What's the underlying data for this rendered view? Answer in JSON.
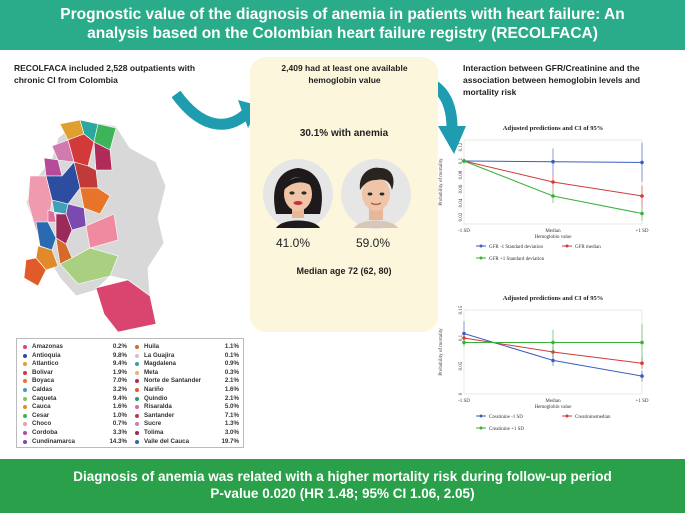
{
  "header": {
    "title_line1": "Prognostic value of the diagnosis of anemia in patients with heart failure: An",
    "title_line2": "analysis based on the Colombian heart failure registry (RECOLFACA)"
  },
  "left": {
    "intro": "RECOLFACA included 2,528 outpatients with chronic CI from Colombia"
  },
  "middle": {
    "hemoglobin_text": "2,409 had at least one available hemoglobin value",
    "anemia_text": "30.1% with anemia",
    "female_pct": "41.0%",
    "male_pct": "59.0%",
    "median_age": "Median age 72 (62, 80)"
  },
  "right": {
    "title": "Interaction between GFR/Creatinine and the association between hemoglobin levels and mortality risk"
  },
  "departments": [
    {
      "name": "Amazonas",
      "value": "0.2%",
      "color": "#d9456e"
    },
    {
      "name": "Antioquia",
      "value": "9.8%",
      "color": "#2d4ea0"
    },
    {
      "name": "Atlantico",
      "value": "9.4%",
      "color": "#e0a030"
    },
    {
      "name": "Bolivar",
      "value": "1.9%",
      "color": "#d23a3a"
    },
    {
      "name": "Boyaca",
      "value": "7.0%",
      "color": "#e8742a"
    },
    {
      "name": "Caldas",
      "value": "3.2%",
      "color": "#3fa0b8"
    },
    {
      "name": "Caqueta",
      "value": "9.4%",
      "color": "#8ac060"
    },
    {
      "name": "Cauca",
      "value": "1.6%",
      "color": "#e08a2a"
    },
    {
      "name": "Cesar",
      "value": "1.0%",
      "color": "#3db35a"
    },
    {
      "name": "Choco",
      "value": "0.7%",
      "color": "#f09ab0"
    },
    {
      "name": "Cordoba",
      "value": "3.3%",
      "color": "#b84a9a"
    },
    {
      "name": "Cundinamarca",
      "value": "14.3%",
      "color": "#7a4ab0"
    },
    {
      "name": "Huila",
      "value": "1.1%",
      "color": "#d66a2a"
    },
    {
      "name": "La Guajira",
      "value": "0.1%",
      "color": "#e0b8c8"
    },
    {
      "name": "Magdalena",
      "value": "0.9%",
      "color": "#2aa8a0"
    },
    {
      "name": "Meta",
      "value": "0.3%",
      "color": "#f0b070"
    },
    {
      "name": "Norte de Santander",
      "value": "2.1%",
      "color": "#b02a5a"
    },
    {
      "name": "Nariño",
      "value": "1.6%",
      "color": "#e05a2a"
    },
    {
      "name": "Quindio",
      "value": "2.1%",
      "color": "#2a9a6a"
    },
    {
      "name": "Risaralda",
      "value": "5.0%",
      "color": "#e06a9a"
    },
    {
      "name": "Santander",
      "value": "7.1%",
      "color": "#c03a3a"
    },
    {
      "name": "Sucre",
      "value": "1.3%",
      "color": "#d07ab0"
    },
    {
      "name": "Tolima",
      "value": "3.0%",
      "color": "#9a2a5a"
    },
    {
      "name": "Valle del Cauca",
      "value": "19.7%",
      "color": "#2a6ab0"
    }
  ],
  "footer": {
    "line1": "Diagnosis of anemia was related with a higher mortality risk during follow-up period",
    "line2": "P-value 0.020 (HR 1.48; 95% CI 1.06, 2.05)"
  },
  "chart_data": [
    {
      "type": "line",
      "title": "Adjusted predictions and CI of 95%",
      "xlabel": "Hemoglobin value",
      "ylabel": "Probability of mortality",
      "categories": [
        "-1 SD",
        "Median",
        "+1 SD"
      ],
      "category_labels": [
        "-1 SD",
        "Median",
        "+1 SD"
      ],
      "ylim": [
        0.01,
        0.13
      ],
      "yticks": [
        0.02,
        0.04,
        0.06,
        0.08,
        0.1,
        0.12
      ],
      "series": [
        {
          "name": "GFR -1 Standard deviation",
          "values": [
            0.1,
            0.099,
            0.098
          ],
          "ci_low": [
            0.097,
            0.08,
            0.07
          ],
          "ci_high": [
            0.103,
            0.118,
            0.126
          ],
          "color": "#3a5ec0"
        },
        {
          "name": "GFR median",
          "values": [
            0.1,
            0.07,
            0.05
          ],
          "ci_low": [
            0.097,
            0.06,
            0.035
          ],
          "ci_high": [
            0.103,
            0.08,
            0.065
          ],
          "color": "#d03a3a"
        },
        {
          "name": "GFR +1 Standard deviation",
          "values": [
            0.1,
            0.05,
            0.025
          ],
          "ci_low": [
            0.097,
            0.04,
            0.015
          ],
          "ci_high": [
            0.103,
            0.06,
            0.035
          ],
          "color": "#3ab03a"
        }
      ]
    },
    {
      "type": "line",
      "title": "Adjusted predictions and CI of 95%",
      "xlabel": "Hemoglobin value",
      "ylabel": "Probability of mortality",
      "categories": [
        "-1 SD",
        "Median",
        "+1 SD"
      ],
      "category_labels": [
        "-1 SD",
        "Median",
        "+1 SD"
      ],
      "ylim": [
        0,
        0.15
      ],
      "yticks": [
        0,
        0.05,
        0.1,
        0.15
      ],
      "series": [
        {
          "name": "Creatinine -1 SD",
          "values": [
            0.108,
            0.06,
            0.032
          ],
          "ci_low": [
            0.098,
            0.05,
            0.022
          ],
          "ci_high": [
            0.13,
            0.07,
            0.042
          ],
          "color": "#3a5ec0"
        },
        {
          "name": "Creatininemedian",
          "values": [
            0.1,
            0.075,
            0.055
          ],
          "ci_low": [
            0.094,
            0.065,
            0.045
          ],
          "ci_high": [
            0.106,
            0.085,
            0.065
          ],
          "color": "#d03a3a"
        },
        {
          "name": "Creatinine +1 SD",
          "values": [
            0.092,
            0.092,
            0.092
          ],
          "ci_low": [
            0.085,
            0.07,
            0.06
          ],
          "ci_high": [
            0.099,
            0.115,
            0.125
          ],
          "color": "#3ab03a"
        }
      ]
    }
  ]
}
